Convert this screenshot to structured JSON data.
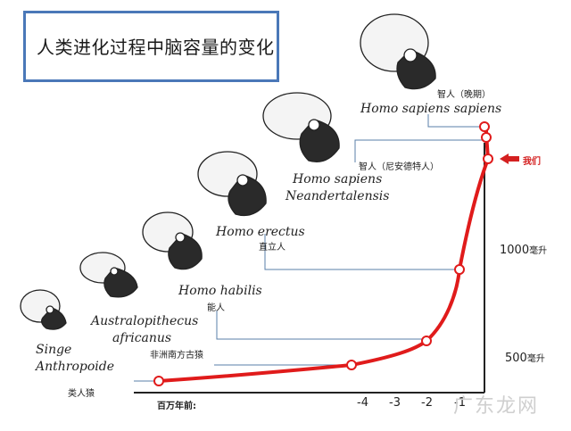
{
  "title": "人类进化过程中脑容量的变化",
  "species": [
    {
      "latin_1": "Singe",
      "latin_2": "Anthropoide",
      "cn": "类人猿"
    },
    {
      "latin_1": "Australopithecus",
      "latin_2": "africanus",
      "cn": "非洲南方古猿"
    },
    {
      "latin_1": "Homo habilis",
      "latin_2": "",
      "cn": "能人"
    },
    {
      "latin_1": "Homo erectus",
      "latin_2": "",
      "cn": "直立人"
    },
    {
      "latin_1": "Homo sapiens",
      "latin_2": "Neandertalensis",
      "cn": "智人（尼安德特人）"
    },
    {
      "latin_1": "Homo sapiens sapiens",
      "latin_2": "",
      "cn": "智人（晚期）"
    }
  ],
  "x_axis_label": "百万年前:",
  "x_ticks": [
    "-4",
    "-3",
    "-2",
    "-1"
  ],
  "y_labels": [
    {
      "value": "1000",
      "unit": "毫升"
    },
    {
      "value": "500",
      "unit": "毫升"
    }
  ],
  "marker_label": "我们",
  "watermark": "广东龙网",
  "colors": {
    "curve": "#e01b1b",
    "marker": "#d42020",
    "title_border": "#4a78b8"
  }
}
